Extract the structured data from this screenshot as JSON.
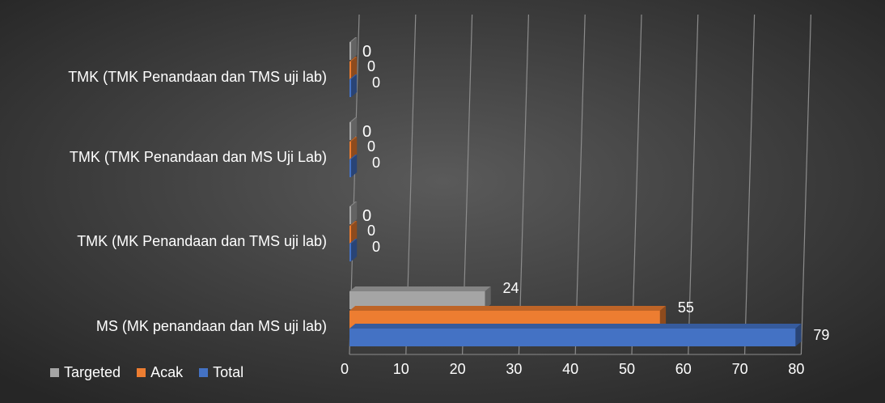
{
  "chart_data": {
    "type": "bar",
    "orientation": "horizontal",
    "style": "3d",
    "categories": [
      "MS (MK penandaan dan MS uji lab)",
      "TMK (MK Penandaan dan TMS uji lab)",
      "TMK (TMK Penandaan dan MS Uji Lab)",
      "TMK (TMK Penandaan dan TMS uji lab)"
    ],
    "series": [
      {
        "name": "Targeted",
        "color": "#a5a5a5",
        "values": [
          24,
          0,
          0,
          0
        ]
      },
      {
        "name": "Acak",
        "color": "#ed7d31",
        "values": [
          55,
          0,
          0,
          0
        ]
      },
      {
        "name": "Total",
        "color": "#4472c4",
        "values": [
          79,
          0,
          0,
          0
        ]
      }
    ],
    "xticks": [
      "0",
      "10",
      "20",
      "30",
      "40",
      "50",
      "60",
      "70",
      "80"
    ],
    "xlim": [
      0,
      80
    ],
    "grid": true,
    "legend_position": "bottom-left",
    "title": "",
    "xlabel": "",
    "ylabel": ""
  }
}
